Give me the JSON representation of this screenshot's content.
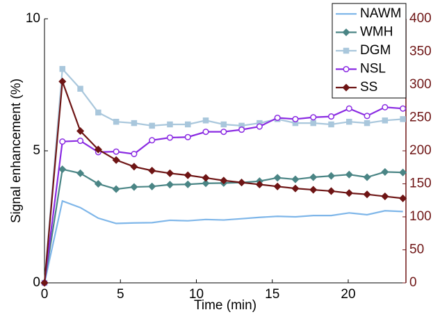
{
  "chart_data": {
    "type": "line",
    "x_label": "Time (min)",
    "y_label": "Signal enhancement (%)",
    "x": [
      0,
      1.18,
      2.36,
      3.54,
      4.72,
      5.9,
      7.08,
      8.26,
      9.44,
      10.62,
      11.8,
      12.98,
      14.16,
      15.34,
      16.52,
      17.7,
      18.88,
      20.06,
      21.24,
      22.42,
      23.6
    ],
    "xlim": [
      0,
      23.8
    ],
    "xticks": [
      0,
      5,
      10,
      15,
      20
    ],
    "ylim": [
      0,
      10
    ],
    "yticks": [
      0,
      5,
      10
    ],
    "y2lim": [
      0,
      400
    ],
    "y2ticks": [
      0,
      50,
      100,
      150,
      200,
      250,
      300,
      350,
      400
    ],
    "y2_color": "#6e1515",
    "legend": "upper right",
    "grid": false,
    "series": [
      {
        "name": "NAWM",
        "color": "#7eb6e9",
        "marker": "none",
        "values": [
          0,
          3.1,
          2.85,
          2.45,
          2.25,
          2.27,
          2.28,
          2.37,
          2.35,
          2.4,
          2.38,
          2.43,
          2.48,
          2.52,
          2.5,
          2.55,
          2.55,
          2.65,
          2.58,
          2.73,
          2.7
        ]
      },
      {
        "name": "WMH",
        "color": "#4a8585",
        "marker": "diamond",
        "values": [
          0,
          4.3,
          4.15,
          3.75,
          3.55,
          3.63,
          3.65,
          3.72,
          3.73,
          3.77,
          3.78,
          3.8,
          3.85,
          3.98,
          3.92,
          4.0,
          4.05,
          4.1,
          4.0,
          4.2,
          4.18
        ]
      },
      {
        "name": "DGM",
        "color": "#a9c7dc",
        "marker": "square",
        "values": [
          0,
          8.1,
          7.35,
          6.45,
          6.1,
          6.05,
          5.95,
          6.0,
          6.0,
          6.15,
          6.0,
          5.95,
          6.05,
          6.2,
          6.05,
          6.05,
          6.0,
          6.1,
          6.05,
          6.15,
          6.2
        ]
      },
      {
        "name": "NSL",
        "color": "#8a2be2",
        "marker": "circle",
        "values": [
          0,
          5.35,
          5.38,
          4.95,
          4.97,
          4.88,
          5.4,
          5.5,
          5.52,
          5.72,
          5.72,
          5.8,
          5.92,
          6.25,
          6.2,
          6.27,
          6.3,
          6.6,
          6.32,
          6.65,
          6.6
        ]
      },
      {
        "name": "SS",
        "color": "#6e1515",
        "marker": "diamond",
        "axis": "y2",
        "values": [
          0,
          305,
          230,
          202,
          186,
          176,
          170,
          166,
          163,
          159,
          155,
          152,
          149,
          146,
          143,
          141,
          139,
          136,
          134,
          131,
          128
        ]
      }
    ]
  }
}
